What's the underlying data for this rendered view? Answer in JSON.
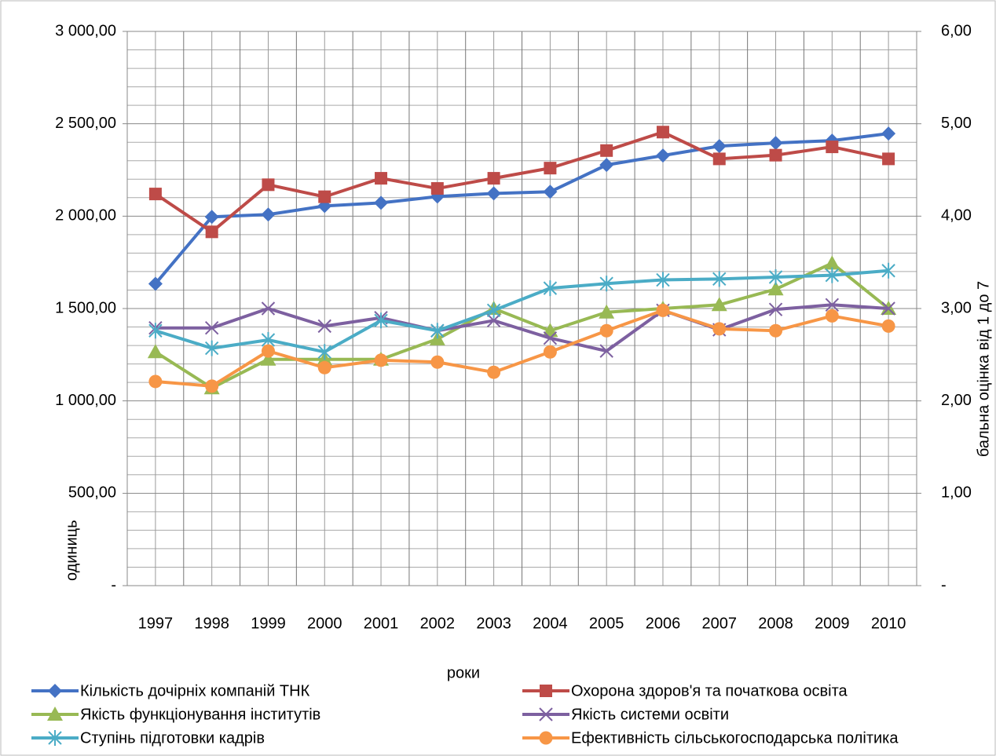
{
  "chart_data": {
    "type": "line",
    "x_label": "роки",
    "y_label": "одиниць",
    "y2_label": "бальна оцінка від 1 до 7",
    "categories": [
      "1997",
      "1998",
      "1999",
      "2000",
      "2001",
      "2002",
      "2003",
      "2004",
      "2005",
      "2006",
      "2007",
      "2008",
      "2009",
      "2010"
    ],
    "ylim": [
      0,
      3000
    ],
    "yticks": [
      {
        "value": 0,
        "label": "-"
      },
      {
        "value": 500,
        "label": "500,00"
      },
      {
        "value": 1000,
        "label": "1 000,00"
      },
      {
        "value": 1500,
        "label": "1 500,00"
      },
      {
        "value": 2000,
        "label": "2 000,00"
      },
      {
        "value": 2500,
        "label": "2 500,00"
      },
      {
        "value": 3000,
        "label": "3 000,00"
      }
    ],
    "y2lim": [
      0,
      6
    ],
    "y2ticks": [
      {
        "value": 0,
        "label": "-"
      },
      {
        "value": 1,
        "label": "1,00"
      },
      {
        "value": 2,
        "label": "2,00"
      },
      {
        "value": 3,
        "label": "3,00"
      },
      {
        "value": 4,
        "label": "4,00"
      },
      {
        "value": 5,
        "label": "5,00"
      },
      {
        "value": 6,
        "label": "6,00"
      }
    ],
    "grid": true,
    "series": [
      {
        "name": "Кількість дочірніх компаній ТНК",
        "color": "#4472c4",
        "marker": "diamond",
        "values": [
          1634,
          1996,
          2009,
          2055,
          2072,
          2106,
          2123,
          2132,
          2277,
          2328,
          2379,
          2396,
          2409,
          2447
        ]
      },
      {
        "name": "Охорона здоров'я та початкова освіта",
        "color": "#be4b48",
        "marker": "square",
        "axis": "y2",
        "values": [
          4.24,
          3.83,
          4.34,
          4.21,
          4.41,
          4.3,
          4.41,
          4.52,
          4.71,
          4.91,
          4.62,
          4.66,
          4.75,
          4.62
        ]
      },
      {
        "name": "Якість функціонування  інститутів",
        "color": "#98b954",
        "marker": "triangle",
        "axis": "y2",
        "values": [
          2.53,
          2.14,
          2.45,
          2.45,
          2.45,
          2.67,
          3.0,
          2.76,
          2.96,
          3.0,
          3.04,
          3.21,
          3.49,
          3.0
        ]
      },
      {
        "name": "Якість системи освіти",
        "color": "#7d60a0",
        "marker": "x",
        "axis": "y2",
        "values": [
          2.79,
          2.79,
          3.0,
          2.81,
          2.9,
          2.76,
          2.87,
          2.68,
          2.54,
          2.98,
          2.77,
          2.99,
          3.04,
          3.0
        ]
      },
      {
        "name": "Ступінь підготовки кадрів",
        "color": "#4bacc6",
        "marker": "star",
        "axis": "y2",
        "values": [
          2.76,
          2.57,
          2.66,
          2.53,
          2.87,
          2.76,
          2.98,
          3.22,
          3.27,
          3.31,
          3.32,
          3.34,
          3.36,
          3.41
        ]
      },
      {
        "name": "Ефективність  сільськогосподарська політика",
        "color": "#f79646",
        "marker": "circle",
        "axis": "y2",
        "values": [
          2.21,
          2.16,
          2.54,
          2.36,
          2.44,
          2.42,
          2.31,
          2.53,
          2.76,
          2.98,
          2.78,
          2.76,
          2.92,
          2.81
        ]
      }
    ]
  }
}
